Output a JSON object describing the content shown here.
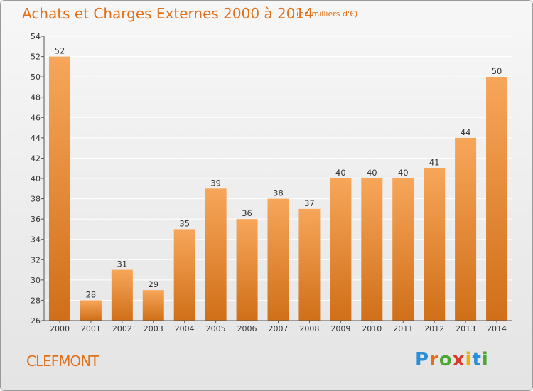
{
  "title": "Achats et Charges Externes 2000 à 2014",
  "unit": "(en milliers d'€)",
  "commune": "CLEFMONT",
  "logo": {
    "letters": [
      "P",
      "r",
      "o",
      "x",
      "i",
      "t",
      "i"
    ]
  },
  "colors": {
    "bar_top": "#f7a65a",
    "bar_bottom": "#d06f18",
    "accent": "#e0701a",
    "grid": "#ffffff"
  },
  "chart_data": {
    "type": "bar",
    "categories": [
      "2000",
      "2001",
      "2002",
      "2003",
      "2004",
      "2005",
      "2006",
      "2007",
      "2008",
      "2009",
      "2010",
      "2011",
      "2012",
      "2013",
      "2014"
    ],
    "values": [
      52,
      28,
      31,
      29,
      35,
      39,
      36,
      38,
      37,
      40,
      40,
      40,
      41,
      44,
      50
    ],
    "data_labels": [
      "52",
      "28",
      "31",
      "29",
      "35",
      "39",
      "36",
      "38",
      "37",
      "40",
      "40",
      "40",
      "41",
      "44",
      "50"
    ],
    "yticks": [
      "26",
      "28",
      "30",
      "32",
      "34",
      "36",
      "38",
      "40",
      "42",
      "44",
      "46",
      "48",
      "50",
      "52",
      "54"
    ],
    "ylim": [
      26,
      54
    ],
    "grid": true
  }
}
